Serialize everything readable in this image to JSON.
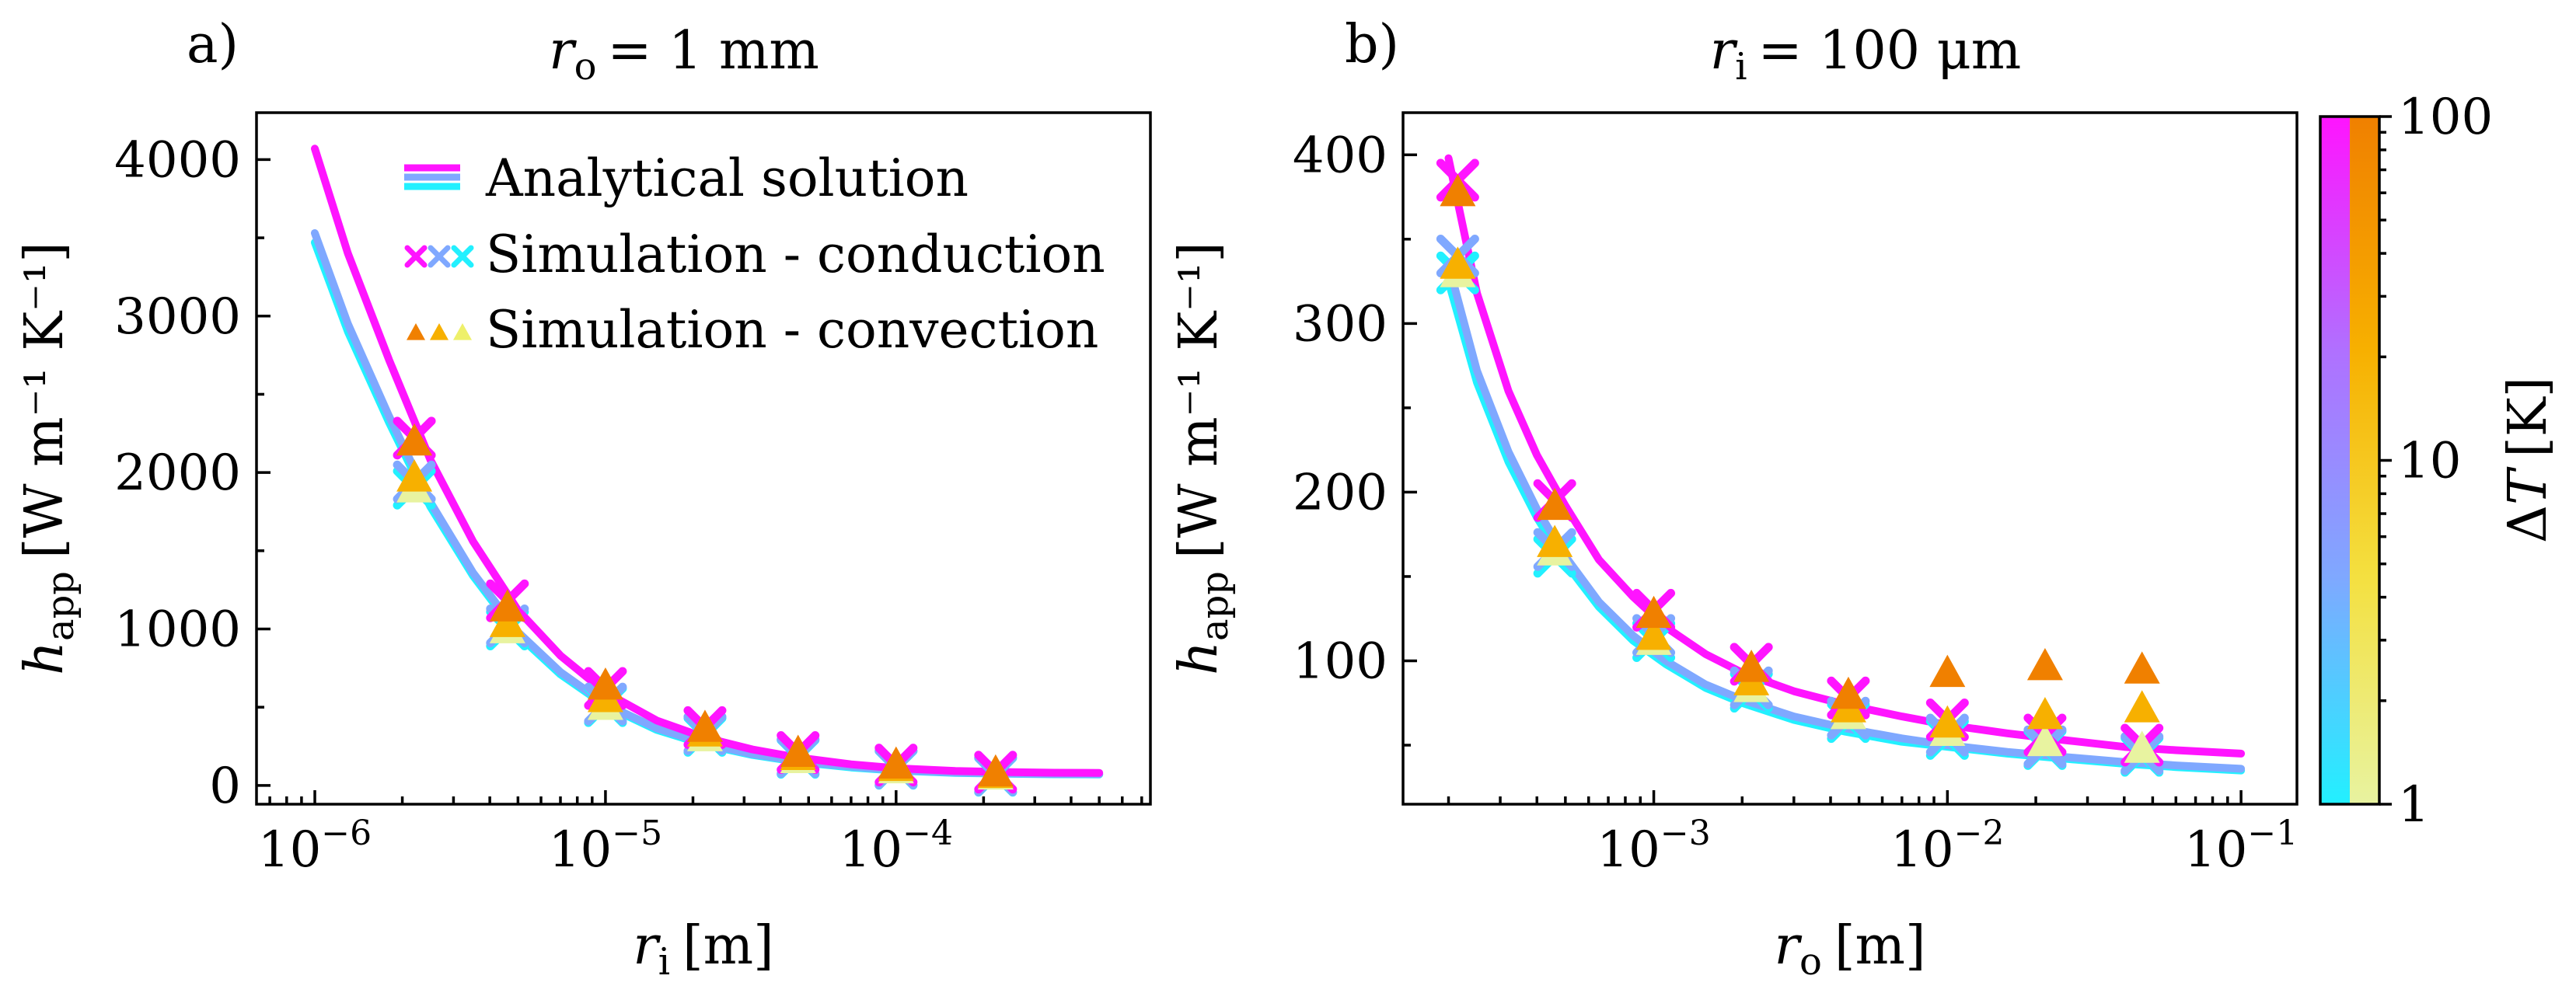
{
  "colors": {
    "magenta": "#ff14ff",
    "lightblue": "#7fa8ff",
    "cyan": "#22f0ff",
    "orange": "#f08000",
    "gold": "#f7b000",
    "yellow": "#eef06a",
    "lightyellow": "#e8f3a0"
  },
  "chart_data": [
    {
      "type": "line",
      "panel_label": "a)",
      "title": {
        "var": "r",
        "sub": "o",
        "eq": "= 1 mm"
      },
      "xlabel": {
        "var": "r",
        "sub": "i",
        "unit": "[m]"
      },
      "ylabel": {
        "var": "h",
        "sub": "app",
        "unit": "[W m⁻¹ K⁻¹]"
      },
      "xscale": "log",
      "xlim": [
        6.3e-07,
        0.00075
      ],
      "ylim": [
        -120,
        4300
      ],
      "x_ticks": [
        {
          "v": 1e-06,
          "base": "10",
          "exp": "−6"
        },
        {
          "v": 1e-05,
          "base": "10",
          "exp": "−5"
        },
        {
          "v": 0.0001,
          "base": "10",
          "exp": "−4"
        }
      ],
      "y_ticks": [
        {
          "v": 0,
          "label": "0"
        },
        {
          "v": 1000,
          "label": "1000"
        },
        {
          "v": 2000,
          "label": "2000"
        },
        {
          "v": 3000,
          "label": "3000"
        },
        {
          "v": 4000,
          "label": "4000"
        }
      ],
      "y_minor": [
        500,
        1500,
        2500,
        3500
      ],
      "legend": {
        "position": "top-right",
        "entries": [
          "Analytical solution",
          "Simulation - conduction",
          "Simulation - convection"
        ]
      },
      "series": [
        {
          "kind": "analytical",
          "color": "#22f0ff",
          "x": [
            1e-06,
            1.3e-06,
            1.8e-06,
            2.5e-06,
            3.5e-06,
            5e-06,
            7e-06,
            1e-05,
            1.5e-05,
            2.2e-05,
            3.2e-05,
            4.6e-05,
            7e-05,
            0.0001,
            0.00016,
            0.00025,
            0.00035,
            0.0005
          ],
          "y": [
            3470,
            2900,
            2320,
            1780,
            1340,
            960,
            710,
            510,
            355,
            260,
            195,
            150,
            115,
            95,
            80,
            74,
            71,
            70
          ]
        },
        {
          "kind": "analytical",
          "color": "#7fa8ff",
          "x": [
            1e-06,
            1.3e-06,
            1.8e-06,
            2.5e-06,
            3.5e-06,
            5e-06,
            7e-06,
            1e-05,
            1.5e-05,
            2.2e-05,
            3.2e-05,
            4.6e-05,
            7e-05,
            0.0001,
            0.00016,
            0.00025,
            0.00035,
            0.0005
          ],
          "y": [
            3530,
            2950,
            2360,
            1810,
            1360,
            980,
            725,
            520,
            365,
            268,
            200,
            155,
            120,
            98,
            82,
            76,
            73,
            72
          ]
        },
        {
          "kind": "analytical",
          "color": "#ff14ff",
          "x": [
            1e-06,
            1.3e-06,
            1.8e-06,
            2.5e-06,
            3.5e-06,
            5e-06,
            7e-06,
            1e-05,
            1.5e-05,
            2.2e-05,
            3.2e-05,
            4.6e-05,
            7e-05,
            0.0001,
            0.00016,
            0.00025,
            0.00035,
            0.0005
          ],
          "y": [
            4070,
            3400,
            2720,
            2080,
            1560,
            1120,
            830,
            595,
            415,
            305,
            230,
            178,
            135,
            110,
            92,
            85,
            81,
            80
          ]
        },
        {
          "kind": "conduction",
          "color": "#22f0ff",
          "x": [
            2.2e-06,
            4.6e-06,
            1e-05,
            2.2e-05,
            4.6e-05,
            0.0001,
            0.00022
          ],
          "y": [
            1900,
            1000,
            510,
            320,
            180,
            110,
            65
          ]
        },
        {
          "kind": "conduction",
          "color": "#7fa8ff",
          "x": [
            2.2e-06,
            4.6e-06,
            1e-05,
            2.2e-05,
            4.6e-05,
            0.0001,
            0.00022
          ],
          "y": [
            1940,
            1020,
            520,
            330,
            185,
            112,
            68
          ]
        },
        {
          "kind": "conduction",
          "color": "#ff14ff",
          "x": [
            2.2e-06,
            4.6e-06,
            1e-05,
            2.2e-05,
            4.6e-05,
            0.0001,
            0.00022
          ],
          "y": [
            2220,
            1180,
            620,
            370,
            210,
            130,
            85
          ]
        },
        {
          "kind": "convection",
          "color": "#e8f3a0",
          "x": [
            2.2e-06,
            4.6e-06,
            1e-05,
            2.2e-05,
            4.6e-05,
            0.0001,
            0.00022
          ],
          "y": [
            1900,
            1000,
            510,
            310,
            170,
            105,
            65
          ]
        },
        {
          "kind": "convection",
          "color": "#f7b000",
          "x": [
            2.2e-06,
            4.6e-06,
            1e-05,
            2.2e-05,
            4.6e-05,
            0.0001,
            0.00022
          ],
          "y": [
            1970,
            1040,
            560,
            340,
            190,
            120,
            75
          ]
        },
        {
          "kind": "convection",
          "color": "#f08000",
          "x": [
            2.2e-06,
            4.6e-06,
            1e-05,
            2.2e-05,
            4.6e-05,
            0.0001,
            0.00022
          ],
          "y": [
            2200,
            1140,
            640,
            370,
            210,
            135,
            85
          ]
        }
      ]
    },
    {
      "type": "line",
      "panel_label": "b)",
      "title": {
        "var": "r",
        "sub": "i",
        "eq": "= 100 μm"
      },
      "xlabel": {
        "var": "r",
        "sub": "o",
        "unit": "[m]"
      },
      "ylabel": {
        "var": "h",
        "sub": "app",
        "unit": "[W m⁻¹ K⁻¹]"
      },
      "xscale": "log",
      "xlim": [
        0.00014,
        0.155
      ],
      "ylim": [
        15,
        425
      ],
      "x_ticks": [
        {
          "v": 0.001,
          "base": "10",
          "exp": "−3"
        },
        {
          "v": 0.01,
          "base": "10",
          "exp": "−2"
        },
        {
          "v": 0.1,
          "base": "10",
          "exp": "−1"
        }
      ],
      "y_ticks": [
        {
          "v": 100,
          "label": "100"
        },
        {
          "v": 200,
          "label": "200"
        },
        {
          "v": 300,
          "label": "300"
        },
        {
          "v": 400,
          "label": "400"
        }
      ],
      "y_minor": [
        50,
        150,
        250,
        350
      ],
      "series": [
        {
          "kind": "analytical",
          "color": "#22f0ff",
          "x": [
            0.0002,
            0.00025,
            0.00032,
            0.0004,
            0.0005,
            0.00065,
            0.00085,
            0.0011,
            0.0015,
            0.002,
            0.003,
            0.0045,
            0.007,
            0.01,
            0.016,
            0.025,
            0.04,
            0.06,
            0.1
          ],
          "y": [
            325,
            265,
            218,
            185,
            158,
            132,
            112,
            98,
            84,
            75,
            65,
            58,
            52,
            49,
            45,
            42,
            39,
            37,
            35
          ]
        },
        {
          "kind": "analytical",
          "color": "#7fa8ff",
          "x": [
            0.0002,
            0.00025,
            0.00032,
            0.0004,
            0.0005,
            0.00065,
            0.00085,
            0.0011,
            0.0015,
            0.002,
            0.003,
            0.0045,
            0.007,
            0.01,
            0.016,
            0.025,
            0.04,
            0.06,
            0.1
          ],
          "y": [
            335,
            272,
            224,
            190,
            162,
            135,
            115,
            100,
            86,
            77,
            67,
            60,
            54,
            50,
            46,
            43,
            40,
            38,
            36
          ]
        },
        {
          "kind": "analytical",
          "color": "#ff14ff",
          "x": [
            0.0002,
            0.00025,
            0.00032,
            0.0004,
            0.0005,
            0.00065,
            0.00085,
            0.0011,
            0.0015,
            0.002,
            0.003,
            0.0045,
            0.007,
            0.01,
            0.016,
            0.025,
            0.04,
            0.06,
            0.1
          ],
          "y": [
            398,
            318,
            260,
            222,
            192,
            160,
            138,
            120,
            104,
            93,
            82,
            74,
            67,
            62,
            57,
            53,
            49,
            47,
            45
          ]
        },
        {
          "kind": "conduction",
          "color": "#22f0ff",
          "x": [
            0.000215,
            0.00046,
            0.001,
            0.00215,
            0.0046,
            0.01,
            0.0215,
            0.046
          ],
          "y": [
            330,
            162,
            112,
            82,
            64,
            54,
            48,
            44
          ]
        },
        {
          "kind": "conduction",
          "color": "#7fa8ff",
          "x": [
            0.000215,
            0.00046,
            0.001,
            0.00215,
            0.0046,
            0.01,
            0.0215,
            0.046
          ],
          "y": [
            340,
            166,
            115,
            84,
            66,
            56,
            49,
            45
          ]
        },
        {
          "kind": "conduction",
          "color": "#ff14ff",
          "x": [
            0.000215,
            0.00046,
            0.001,
            0.00215,
            0.0046,
            0.01,
            0.0215,
            0.046
          ],
          "y": [
            385,
            195,
            130,
            98,
            78,
            65,
            56,
            50
          ]
        },
        {
          "kind": "convection",
          "color": "#e8f3a0",
          "x": [
            0.000215,
            0.00046,
            0.001,
            0.00215,
            0.0046,
            0.01,
            0.0215,
            0.046
          ],
          "y": [
            330,
            165,
            112,
            84,
            68,
            58,
            52,
            48
          ]
        },
        {
          "kind": "convection",
          "color": "#f7b000",
          "x": [
            0.000215,
            0.00046,
            0.001,
            0.00215,
            0.0046,
            0.01,
            0.0215,
            0.046
          ],
          "y": [
            335,
            170,
            115,
            88,
            72,
            63,
            68,
            72
          ]
        },
        {
          "kind": "convection",
          "color": "#f08000",
          "x": [
            0.000215,
            0.00046,
            0.001,
            0.00215,
            0.0046,
            0.01,
            0.0215,
            0.046
          ],
          "y": [
            378,
            192,
            128,
            96,
            80,
            93,
            97,
            95
          ]
        }
      ]
    }
  ],
  "colorbar": {
    "label": {
      "prefix": "Δ",
      "var": "T",
      "unit": "[K]"
    },
    "scale": "log",
    "range": [
      1,
      100
    ],
    "ticks": [
      {
        "v": 1,
        "label": "1"
      },
      {
        "v": 10,
        "label": "10"
      },
      {
        "v": 100,
        "label": "100"
      }
    ],
    "conduction_gradient": [
      "#22f0ff",
      "#7fa8ff",
      "#b070ff",
      "#ff14ff"
    ],
    "convection_gradient": [
      "#e8f3a0",
      "#f4e040",
      "#f7b000",
      "#f08000"
    ]
  }
}
